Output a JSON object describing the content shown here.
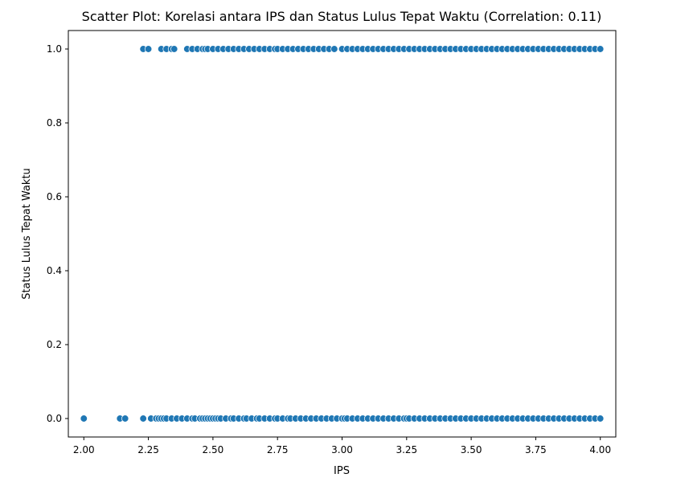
{
  "chart_data": {
    "type": "scatter",
    "title": "Scatter Plot: Korelasi antara IPS dan Status Lulus Tepat Waktu (Correlation: 0.11)",
    "xlabel": "IPS",
    "ylabel": "Status Lulus Tepat Waktu",
    "xlim": [
      1.94,
      4.06
    ],
    "ylim": [
      -0.05,
      1.05
    ],
    "xticks": [
      "2.00",
      "2.25",
      "2.50",
      "2.75",
      "3.00",
      "3.25",
      "3.50",
      "3.75",
      "4.00"
    ],
    "yticks": [
      "0.0",
      "0.2",
      "0.4",
      "0.6",
      "0.8",
      "1.0"
    ],
    "grid": false,
    "marker_color": "#1f77b4",
    "series": [
      {
        "points": [
          [
            2.0,
            0
          ],
          [
            2.14,
            0
          ],
          [
            2.16,
            0
          ],
          [
            2.23,
            0
          ],
          [
            2.26,
            0
          ],
          [
            2.28,
            0
          ],
          [
            2.29,
            0
          ],
          [
            2.3,
            0
          ],
          [
            2.31,
            0
          ],
          [
            2.32,
            0
          ],
          [
            2.34,
            0
          ],
          [
            2.36,
            0
          ],
          [
            2.38,
            0
          ],
          [
            2.4,
            0
          ],
          [
            2.42,
            0
          ],
          [
            2.43,
            0
          ],
          [
            2.45,
            0
          ],
          [
            2.46,
            0
          ],
          [
            2.47,
            0
          ],
          [
            2.48,
            0
          ],
          [
            2.49,
            0
          ],
          [
            2.5,
            0
          ],
          [
            2.51,
            0
          ],
          [
            2.52,
            0
          ],
          [
            2.53,
            0
          ],
          [
            2.55,
            0
          ],
          [
            2.57,
            0
          ],
          [
            2.58,
            0
          ],
          [
            2.6,
            0
          ],
          [
            2.62,
            0
          ],
          [
            2.63,
            0
          ],
          [
            2.65,
            0
          ],
          [
            2.67,
            0
          ],
          [
            2.68,
            0
          ],
          [
            2.7,
            0
          ],
          [
            2.72,
            0
          ],
          [
            2.74,
            0
          ],
          [
            2.75,
            0
          ],
          [
            2.77,
            0
          ],
          [
            2.79,
            0
          ],
          [
            2.8,
            0
          ],
          [
            2.82,
            0
          ],
          [
            2.84,
            0
          ],
          [
            2.86,
            0
          ],
          [
            2.88,
            0
          ],
          [
            2.9,
            0
          ],
          [
            2.92,
            0
          ],
          [
            2.94,
            0
          ],
          [
            2.96,
            0
          ],
          [
            2.98,
            0
          ],
          [
            3.0,
            0
          ],
          [
            3.01,
            0
          ],
          [
            3.02,
            0
          ],
          [
            3.04,
            0
          ],
          [
            3.06,
            0
          ],
          [
            3.08,
            0
          ],
          [
            3.1,
            0
          ],
          [
            3.12,
            0
          ],
          [
            3.14,
            0
          ],
          [
            3.16,
            0
          ],
          [
            3.18,
            0
          ],
          [
            3.2,
            0
          ],
          [
            3.22,
            0
          ],
          [
            3.24,
            0
          ],
          [
            3.25,
            0
          ],
          [
            3.26,
            0
          ],
          [
            3.28,
            0
          ],
          [
            3.3,
            0
          ],
          [
            3.32,
            0
          ],
          [
            3.34,
            0
          ],
          [
            3.36,
            0
          ],
          [
            3.38,
            0
          ],
          [
            3.4,
            0
          ],
          [
            3.42,
            0
          ],
          [
            3.44,
            0
          ],
          [
            3.46,
            0
          ],
          [
            3.48,
            0
          ],
          [
            3.5,
            0
          ],
          [
            3.52,
            0
          ],
          [
            3.54,
            0
          ],
          [
            3.56,
            0
          ],
          [
            3.58,
            0
          ],
          [
            3.6,
            0
          ],
          [
            3.62,
            0
          ],
          [
            3.64,
            0
          ],
          [
            3.66,
            0
          ],
          [
            3.68,
            0
          ],
          [
            3.7,
            0
          ],
          [
            3.72,
            0
          ],
          [
            3.74,
            0
          ],
          [
            3.76,
            0
          ],
          [
            3.78,
            0
          ],
          [
            3.8,
            0
          ],
          [
            3.82,
            0
          ],
          [
            3.84,
            0
          ],
          [
            3.86,
            0
          ],
          [
            3.88,
            0
          ],
          [
            3.9,
            0
          ],
          [
            3.92,
            0
          ],
          [
            3.94,
            0
          ],
          [
            3.96,
            0
          ],
          [
            3.98,
            0
          ],
          [
            4.0,
            0
          ],
          [
            2.23,
            1
          ],
          [
            2.25,
            1
          ],
          [
            2.3,
            1
          ],
          [
            2.32,
            1
          ],
          [
            2.34,
            1
          ],
          [
            2.35,
            1
          ],
          [
            2.4,
            1
          ],
          [
            2.42,
            1
          ],
          [
            2.44,
            1
          ],
          [
            2.46,
            1
          ],
          [
            2.47,
            1
          ],
          [
            2.48,
            1
          ],
          [
            2.5,
            1
          ],
          [
            2.52,
            1
          ],
          [
            2.54,
            1
          ],
          [
            2.56,
            1
          ],
          [
            2.58,
            1
          ],
          [
            2.6,
            1
          ],
          [
            2.62,
            1
          ],
          [
            2.64,
            1
          ],
          [
            2.66,
            1
          ],
          [
            2.68,
            1
          ],
          [
            2.7,
            1
          ],
          [
            2.72,
            1
          ],
          [
            2.74,
            1
          ],
          [
            2.75,
            1
          ],
          [
            2.77,
            1
          ],
          [
            2.79,
            1
          ],
          [
            2.81,
            1
          ],
          [
            2.83,
            1
          ],
          [
            2.85,
            1
          ],
          [
            2.87,
            1
          ],
          [
            2.89,
            1
          ],
          [
            2.91,
            1
          ],
          [
            2.93,
            1
          ],
          [
            2.95,
            1
          ],
          [
            2.97,
            1
          ],
          [
            3.0,
            1
          ],
          [
            3.02,
            1
          ],
          [
            3.04,
            1
          ],
          [
            3.06,
            1
          ],
          [
            3.08,
            1
          ],
          [
            3.1,
            1
          ],
          [
            3.12,
            1
          ],
          [
            3.14,
            1
          ],
          [
            3.16,
            1
          ],
          [
            3.18,
            1
          ],
          [
            3.2,
            1
          ],
          [
            3.22,
            1
          ],
          [
            3.24,
            1
          ],
          [
            3.26,
            1
          ],
          [
            3.28,
            1
          ],
          [
            3.3,
            1
          ],
          [
            3.32,
            1
          ],
          [
            3.34,
            1
          ],
          [
            3.36,
            1
          ],
          [
            3.38,
            1
          ],
          [
            3.4,
            1
          ],
          [
            3.42,
            1
          ],
          [
            3.44,
            1
          ],
          [
            3.46,
            1
          ],
          [
            3.48,
            1
          ],
          [
            3.5,
            1
          ],
          [
            3.52,
            1
          ],
          [
            3.54,
            1
          ],
          [
            3.56,
            1
          ],
          [
            3.58,
            1
          ],
          [
            3.6,
            1
          ],
          [
            3.62,
            1
          ],
          [
            3.64,
            1
          ],
          [
            3.66,
            1
          ],
          [
            3.68,
            1
          ],
          [
            3.7,
            1
          ],
          [
            3.72,
            1
          ],
          [
            3.74,
            1
          ],
          [
            3.76,
            1
          ],
          [
            3.78,
            1
          ],
          [
            3.8,
            1
          ],
          [
            3.82,
            1
          ],
          [
            3.84,
            1
          ],
          [
            3.86,
            1
          ],
          [
            3.88,
            1
          ],
          [
            3.9,
            1
          ],
          [
            3.92,
            1
          ],
          [
            3.94,
            1
          ],
          [
            3.96,
            1
          ],
          [
            3.98,
            1
          ],
          [
            4.0,
            1
          ]
        ]
      }
    ]
  }
}
